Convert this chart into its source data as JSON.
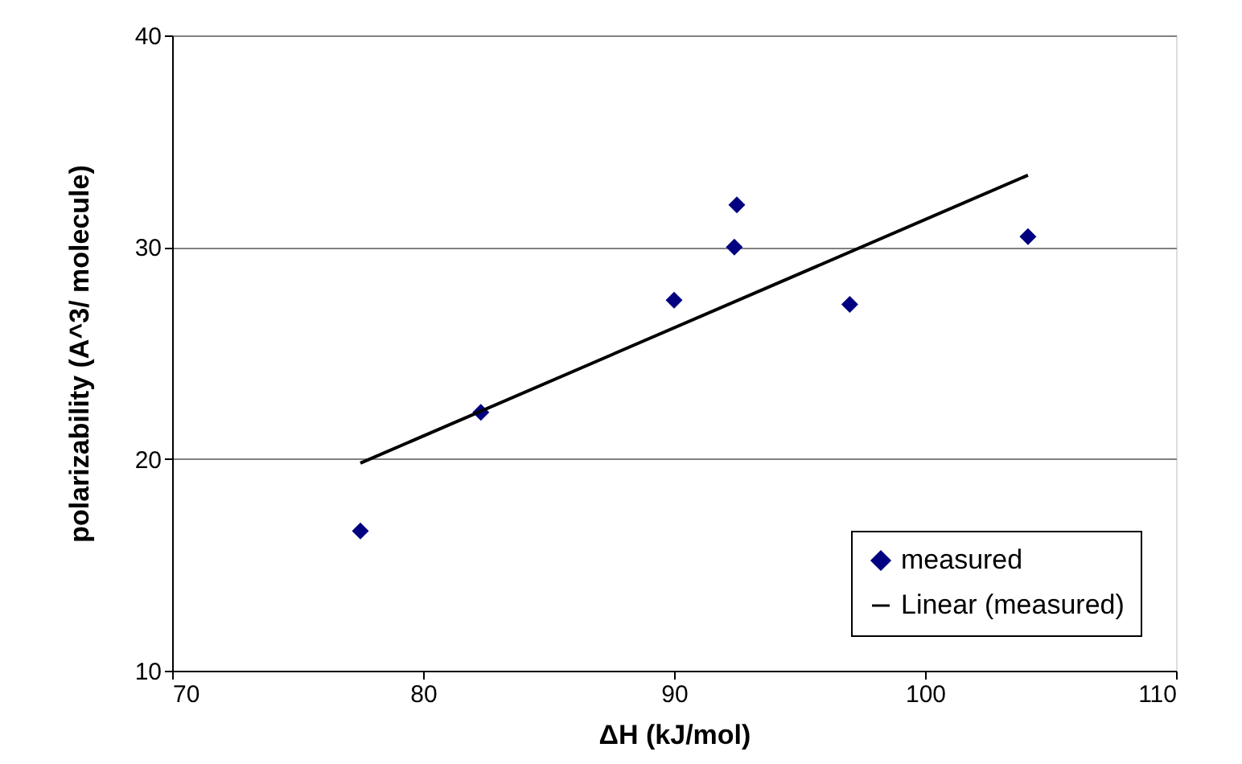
{
  "chart_data": {
    "type": "scatter",
    "xlabel": "ΔH (kJ/mol)",
    "ylabel": "polarizability (A^3/ molecule)",
    "xlim": [
      70,
      110
    ],
    "xticks": [
      70,
      80,
      90,
      100,
      110
    ],
    "ylim": [
      10,
      40
    ],
    "yticks": [
      10,
      20,
      30,
      40
    ],
    "grid": "y",
    "legend": "bottom right",
    "series": [
      {
        "name": "measured",
        "color": "#000080",
        "marker": "diamond",
        "x": [
          77.5,
          82.3,
          90.0,
          92.4,
          92.5,
          97.0,
          104.1
        ],
        "values": [
          16.6,
          22.2,
          27.5,
          30.0,
          32.0,
          27.3,
          30.5
        ]
      },
      {
        "name": "Linear (measured)",
        "color": "#000000",
        "type": "line",
        "line_style": "solid",
        "x": [
          77.5,
          104.1
        ],
        "values": [
          19.8,
          33.4
        ]
      }
    ]
  }
}
